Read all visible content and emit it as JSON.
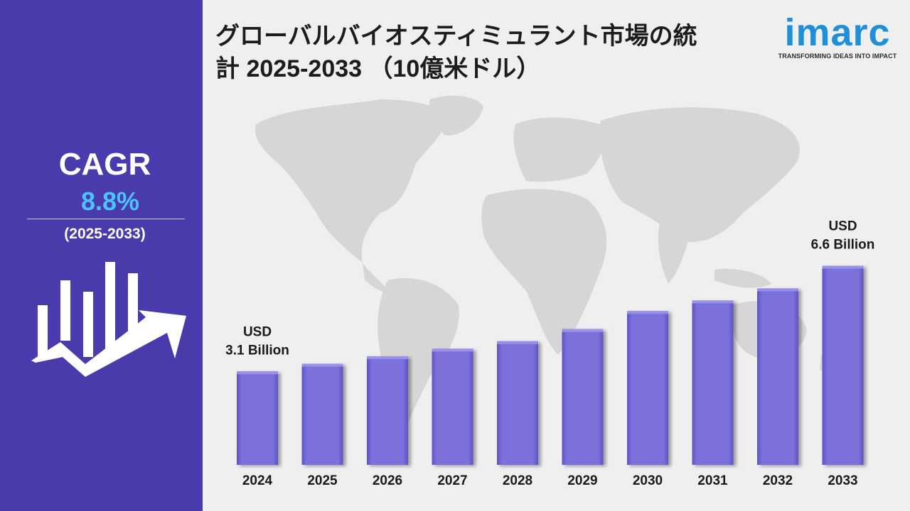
{
  "title": "グローバルバイオスティミュラント市場の統計 2025-2033 （10億米ドル）",
  "title_line1": "グローバルバイオスティミュラント市場の統",
  "title_line2": "計 2025-2033 （10億米ドル）",
  "logo": {
    "word": "imarc",
    "tagline": "TRANSFORMING IDEAS INTO IMPACT"
  },
  "cagr": {
    "label": "CAGR",
    "value": "8.8%",
    "period": "(2025-2033)"
  },
  "colors": {
    "sidebar": "#4a3bac",
    "bar": "#7b70db",
    "bar_edge": "#5e52c6",
    "cagr_value": "#4cc3ff",
    "map": "#d6d6d6"
  },
  "icons": {
    "growth": "bar-chart-rising-arrow-icon",
    "map": "world-map-background"
  },
  "chart_data": {
    "type": "bar",
    "categories": [
      "2024",
      "2025",
      "2026",
      "2027",
      "2028",
      "2029",
      "2030",
      "2031",
      "2032",
      "2033"
    ],
    "values": [
      3.1,
      3.35,
      3.6,
      3.85,
      4.1,
      4.5,
      5.1,
      5.45,
      5.85,
      6.6
    ],
    "unit": "USD Billion",
    "ylim": [
      0,
      7
    ],
    "annotations": [
      {
        "category": "2024",
        "line1": "USD",
        "line2": "3.1 Billion"
      },
      {
        "category": "2033",
        "line1": "USD",
        "line2": "6.6 Billion"
      }
    ],
    "grid": false,
    "legend": "none"
  }
}
